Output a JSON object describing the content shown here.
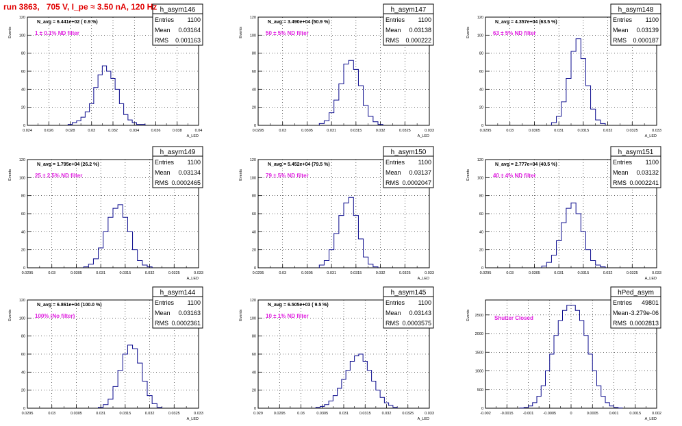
{
  "page": {
    "title": "run 3863,   705 V, I_pe ≈ 3.50 nA, 120 Hz",
    "title_color": "#e00000",
    "note_color": "#e020e0",
    "hist_color": "#0a0a8c"
  },
  "chart_data": [
    {
      "type": "histogram",
      "name": "h_asym146",
      "navg": "N_avg = 6.441e+02 ( 0.9 %)",
      "note": "1 ± 0.1% ND filter",
      "stats": {
        "entries": "1100",
        "mean": "0.03164",
        "rms": "0.001163"
      },
      "xlim": [
        0.024,
        0.04
      ],
      "ylim": [
        0,
        120
      ],
      "xticks": [
        "0.024",
        "0.026",
        "0.028",
        "0.03",
        "0.032",
        "0.034",
        "0.036",
        "0.038",
        "0.04"
      ],
      "yticks": [
        "0",
        "20",
        "40",
        "60",
        "80",
        "100",
        "120"
      ],
      "xlabel": "A_LED",
      "ylabel": "Events",
      "bin_edges": [
        0.0278,
        0.0282,
        0.0286,
        0.029,
        0.0294,
        0.0298,
        0.0302,
        0.0306,
        0.031,
        0.0314,
        0.0318,
        0.0322,
        0.0326,
        0.033,
        0.0334,
        0.0338,
        0.0342,
        0.0346,
        0.035
      ],
      "values": [
        1,
        3,
        5,
        9,
        15,
        24,
        42,
        56,
        66,
        60,
        52,
        40,
        24,
        12,
        6,
        3,
        1,
        1
      ]
    },
    {
      "type": "histogram",
      "name": "h_asym147",
      "navg": "N_avg = 3.490e+04 (50.9 %)",
      "note": "50 ± 5% ND filter",
      "stats": {
        "entries": "1100",
        "mean": "0.03138",
        "rms": "0.000222"
      },
      "xlim": [
        0.0295,
        0.033
      ],
      "ylim": [
        0,
        120
      ],
      "xticks": [
        "0.0295",
        "0.03",
        "0.0305",
        "0.031",
        "0.0315",
        "0.032",
        "0.0325",
        "0.033"
      ],
      "yticks": [
        "0",
        "20",
        "40",
        "60",
        "80",
        "100",
        "120"
      ],
      "xlabel": "A_LED",
      "ylabel": "Events",
      "bin_edges": [
        0.03075,
        0.03085,
        0.03095,
        0.03105,
        0.03115,
        0.03125,
        0.03135,
        0.03145,
        0.03155,
        0.03165,
        0.03175,
        0.03185,
        0.03195,
        0.03205
      ],
      "values": [
        2,
        5,
        14,
        28,
        46,
        68,
        72,
        62,
        44,
        22,
        10,
        4,
        1
      ]
    },
    {
      "type": "histogram",
      "name": "h_asym148",
      "navg": "N_avg = 4.357e+04 (63.5 %)",
      "note": "63 ± 5% ND filter",
      "stats": {
        "entries": "1100",
        "mean": "0.03139",
        "rms": "0.000187"
      },
      "xlim": [
        0.0295,
        0.033
      ],
      "ylim": [
        0,
        120
      ],
      "xticks": [
        "0.0295",
        "0.03",
        "0.0305",
        "0.031",
        "0.0315",
        "0.032",
        "0.0325",
        "0.033"
      ],
      "yticks": [
        "0",
        "20",
        "40",
        "60",
        "80",
        "100",
        "120"
      ],
      "xlabel": "A_LED",
      "ylabel": "Events",
      "bin_edges": [
        0.03085,
        0.03095,
        0.03105,
        0.03115,
        0.03125,
        0.03135,
        0.03145,
        0.03155,
        0.03165,
        0.03175,
        0.03185,
        0.03195
      ],
      "values": [
        3,
        10,
        26,
        52,
        82,
        96,
        74,
        44,
        18,
        6,
        2
      ]
    },
    {
      "type": "histogram",
      "name": "h_asym149",
      "navg": "N_avg = 1.795e+04 (26.2 %)",
      "note": "25 ± 2.5% ND filter",
      "stats": {
        "entries": "1100",
        "mean": "0.03134",
        "rms": "0.0002465"
      },
      "xlim": [
        0.0295,
        0.033
      ],
      "ylim": [
        0,
        120
      ],
      "xticks": [
        "0.0295",
        "0.03",
        "0.0305",
        "0.031",
        "0.0315",
        "0.032",
        "0.0325",
        "0.033"
      ],
      "yticks": [
        "0",
        "20",
        "40",
        "60",
        "80",
        "100",
        "120"
      ],
      "xlabel": "A_LED",
      "ylabel": "Events",
      "bin_edges": [
        0.03065,
        0.03075,
        0.03085,
        0.03095,
        0.03105,
        0.03115,
        0.03125,
        0.03135,
        0.03145,
        0.03155,
        0.03165,
        0.03175,
        0.03185,
        0.03195,
        0.03205
      ],
      "values": [
        1,
        4,
        10,
        22,
        40,
        56,
        66,
        70,
        56,
        40,
        20,
        8,
        3,
        1
      ]
    },
    {
      "type": "histogram",
      "name": "h_asym150",
      "navg": "N_avg = 5.452e+04 (79.5 %)",
      "note": "79 ± 5% ND filter",
      "stats": {
        "entries": "1100",
        "mean": "0.03137",
        "rms": "0.0002047"
      },
      "xlim": [
        0.0295,
        0.033
      ],
      "ylim": [
        0,
        120
      ],
      "xticks": [
        "0.0295",
        "0.03",
        "0.0305",
        "0.031",
        "0.0315",
        "0.032",
        "0.0325",
        "0.033"
      ],
      "yticks": [
        "0",
        "20",
        "40",
        "60",
        "80",
        "100",
        "120"
      ],
      "xlabel": "A_LED",
      "ylabel": "Events",
      "bin_edges": [
        0.03075,
        0.03085,
        0.03095,
        0.03105,
        0.03115,
        0.03125,
        0.03135,
        0.03145,
        0.03155,
        0.03165,
        0.03175,
        0.03185,
        0.03195
      ],
      "values": [
        3,
        8,
        20,
        38,
        58,
        72,
        78,
        58,
        32,
        12,
        4,
        1
      ]
    },
    {
      "type": "histogram",
      "name": "h_asym151",
      "navg": "N_avg = 2.777e+04 (40.5 %)",
      "note": "40 ± 4% ND filter",
      "stats": {
        "entries": "1100",
        "mean": "0.03132",
        "rms": "0.0002241"
      },
      "xlim": [
        0.0295,
        0.033
      ],
      "ylim": [
        0,
        120
      ],
      "xticks": [
        "0.0295",
        "0.03",
        "0.0305",
        "0.031",
        "0.0315",
        "0.032",
        "0.0325",
        "0.033"
      ],
      "yticks": [
        "0",
        "20",
        "40",
        "60",
        "80",
        "100",
        "120"
      ],
      "xlabel": "A_LED",
      "ylabel": "Events",
      "bin_edges": [
        0.03065,
        0.03075,
        0.03085,
        0.03095,
        0.03105,
        0.03115,
        0.03125,
        0.03135,
        0.03145,
        0.03155,
        0.03165,
        0.03175,
        0.03185,
        0.03195
      ],
      "values": [
        2,
        6,
        14,
        30,
        50,
        66,
        72,
        60,
        40,
        20,
        8,
        3,
        1
      ]
    },
    {
      "type": "histogram",
      "name": "h_asym144",
      "navg": "N_avg = 6.861e+04 (100.0 %)",
      "note": "100% (No filter)",
      "stats": {
        "entries": "1100",
        "mean": "0.03163",
        "rms": "0.0002361"
      },
      "xlim": [
        0.0295,
        0.033
      ],
      "ylim": [
        0,
        120
      ],
      "xticks": [
        "0.0295",
        "0.03",
        "0.0305",
        "0.031",
        "0.0315",
        "0.032",
        "0.0325",
        "0.033"
      ],
      "yticks": [
        "0",
        "20",
        "40",
        "60",
        "80",
        "100",
        "120"
      ],
      "xlabel": "A_LED",
      "ylabel": "Events",
      "bin_edges": [
        0.03095,
        0.03105,
        0.03115,
        0.03125,
        0.03135,
        0.03145,
        0.03155,
        0.03165,
        0.03175,
        0.03185,
        0.03195,
        0.03205,
        0.03215,
        0.03225
      ],
      "values": [
        1,
        4,
        10,
        24,
        42,
        60,
        70,
        66,
        50,
        30,
        14,
        5,
        1
      ]
    },
    {
      "type": "histogram",
      "name": "h_asym145",
      "navg": "N_avg = 6.505e+03 ( 9.5 %)",
      "note": "10 ± 1% ND filter",
      "stats": {
        "entries": "1100",
        "mean": "0.03143",
        "rms": "0.0003575"
      },
      "xlim": [
        0.029,
        0.033
      ],
      "ylim": [
        0,
        120
      ],
      "xticks": [
        "0.029",
        "0.0295",
        "0.03",
        "0.0305",
        "0.031",
        "0.0315",
        "0.032",
        "0.0325",
        "0.033"
      ],
      "yticks": [
        "0",
        "20",
        "40",
        "60",
        "80",
        "100",
        "120"
      ],
      "xlabel": "A_LED",
      "ylabel": "Events",
      "bin_edges": [
        0.03035,
        0.03045,
        0.03055,
        0.03065,
        0.03075,
        0.03085,
        0.03095,
        0.03105,
        0.03115,
        0.03125,
        0.03135,
        0.03145,
        0.03155,
        0.03165,
        0.03175,
        0.03185,
        0.03195,
        0.03205,
        0.03215,
        0.03225
      ],
      "values": [
        1,
        2,
        4,
        8,
        14,
        22,
        32,
        42,
        52,
        58,
        60,
        52,
        42,
        30,
        20,
        12,
        6,
        3,
        1
      ]
    },
    {
      "type": "histogram",
      "name": "hPed_asym",
      "navg": "",
      "note": "Shutter Closed",
      "stats": {
        "entries": "49801",
        "mean": "-3.279e-06",
        "rms": "0.0002813"
      },
      "xlim": [
        -0.002,
        0.002
      ],
      "ylim": [
        0,
        2900
      ],
      "xticks": [
        "-0.002",
        "-0.0015",
        "-0.001",
        "-0.0005",
        "0",
        "0.0005",
        "0.001",
        "0.0015",
        "0.002"
      ],
      "xtick_values": [
        -0.002,
        -0.0015,
        -0.001,
        -0.0005,
        0,
        0.0005,
        0.001,
        0.0015,
        0.002
      ],
      "yticks": [
        "0",
        "500",
        "1000",
        "1500",
        "2000",
        "2500"
      ],
      "ytick_values": [
        0,
        500,
        1000,
        1500,
        2000,
        2500
      ],
      "xlabel": "A_LED",
      "ylabel": "Events",
      "bin_edges": [
        -0.0012,
        -0.0011,
        -0.001,
        -0.0009,
        -0.0008,
        -0.0007,
        -0.0006,
        -0.0005,
        -0.0004,
        -0.0003,
        -0.0002,
        -0.0001,
        0,
        0.0001,
        0.0002,
        0.0003,
        0.0004,
        0.0005,
        0.0006,
        0.0007,
        0.0008,
        0.0009,
        0.001,
        0.0011,
        0.0012
      ],
      "values": [
        5,
        20,
        60,
        150,
        320,
        600,
        1000,
        1450,
        1950,
        2350,
        2620,
        2760,
        2760,
        2620,
        2350,
        1950,
        1450,
        1000,
        600,
        320,
        150,
        60,
        20,
        5
      ]
    }
  ]
}
